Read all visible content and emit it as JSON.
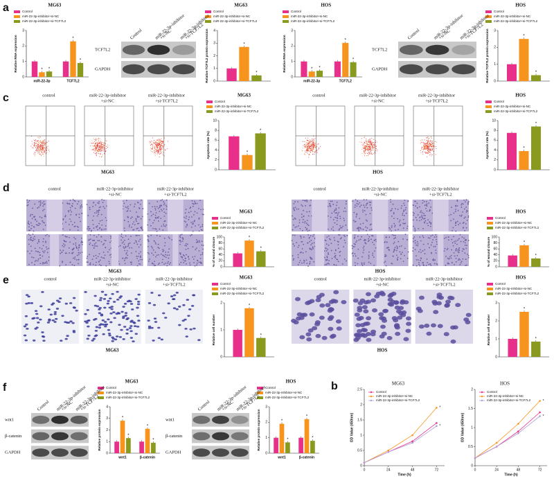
{
  "chart_data": [
    {
      "type": "bar",
      "title": "MG63",
      "ylabel": "Relative RNA expression",
      "categories": [
        "miR-22-3p",
        "TCF7L2"
      ],
      "ylim": [
        0,
        3
      ],
      "yticks": [
        0,
        1,
        2,
        3
      ],
      "series": [
        {
          "name": "Control",
          "color": "#e8308a",
          "values": [
            1.0,
            1.0
          ]
        },
        {
          "name": "miR-22-3p-inhibitor+si-NC",
          "color": "#f7941d",
          "values": [
            0.3,
            2.3
          ],
          "sig": [
            "*",
            "*"
          ]
        },
        {
          "name": "miR-22-3p-inhibitor+si-TCF7L2",
          "color": "#8a9a1e",
          "values": [
            0.35,
            0.9
          ],
          "sig": [
            "*",
            "*"
          ]
        }
      ]
    },
    {
      "type": "bar",
      "title": "MG63",
      "ylabel": "Relative TCF7L2 protein expression",
      "categories": [
        null
      ],
      "ylim": [
        0,
        4
      ],
      "yticks": [
        0,
        1,
        2,
        3,
        4
      ],
      "series": [
        {
          "name": "Control",
          "color": "#e8308a",
          "values": [
            1.0
          ]
        },
        {
          "name": "miR-22-3p-inhibitor+si-NC",
          "color": "#f7941d",
          "values": [
            2.7
          ],
          "sig": [
            "*"
          ]
        },
        {
          "name": "miR-22-3p-inhibitor+si-TCF7L2",
          "color": "#8a9a1e",
          "values": [
            0.45
          ],
          "sig": [
            "*"
          ]
        }
      ]
    },
    {
      "type": "bar",
      "title": "HOS",
      "ylabel": "Relative RNA expression",
      "categories": [
        "miR-22-3p",
        "TCF7L2"
      ],
      "ylim": [
        0,
        3
      ],
      "yticks": [
        0,
        1,
        2,
        3
      ],
      "series": [
        {
          "name": "Control",
          "color": "#e8308a",
          "values": [
            1.0,
            1.0
          ]
        },
        {
          "name": "miR-22-3p-inhibitor+si-NC",
          "color": "#f7941d",
          "values": [
            0.35,
            2.2
          ],
          "sig": [
            "*",
            "*"
          ]
        },
        {
          "name": "miR-22-3p-inhibitor+si-TCF7L2",
          "color": "#8a9a1e",
          "values": [
            0.4,
            0.95
          ],
          "sig": [
            "*",
            "*"
          ]
        }
      ]
    },
    {
      "type": "bar",
      "title": "HOS",
      "ylabel": "Relative TCF7L2 protein expression",
      "categories": [
        null
      ],
      "ylim": [
        0,
        3
      ],
      "yticks": [
        0,
        1,
        2,
        3
      ],
      "series": [
        {
          "name": "Control",
          "color": "#e8308a",
          "values": [
            1.0
          ]
        },
        {
          "name": "miR-22-3p-inhibitor+si-NC",
          "color": "#f7941d",
          "values": [
            2.5
          ],
          "sig": [
            "*"
          ]
        },
        {
          "name": "miR-22-3p-inhibitor+si-TCF7L2",
          "color": "#8a9a1e",
          "values": [
            0.35
          ],
          "sig": [
            "*"
          ]
        }
      ]
    },
    {
      "type": "bar",
      "title": "MG63",
      "ylabel": "Apoptosis rate (%)",
      "categories": [
        null
      ],
      "ylim": [
        0,
        10
      ],
      "yticks": [
        0,
        2,
        4,
        6,
        8,
        10
      ],
      "series": [
        {
          "name": "Control",
          "color": "#e8308a",
          "values": [
            6.8
          ]
        },
        {
          "name": "miR-22-3p-inhibitor+si-NC",
          "color": "#f7941d",
          "values": [
            3.0
          ],
          "sig": [
            "*"
          ]
        },
        {
          "name": "miR-22-3p-inhibitor+si-TCF7L2",
          "color": "#8a9a1e",
          "values": [
            7.4
          ],
          "sig": [
            "*"
          ]
        }
      ]
    },
    {
      "type": "bar",
      "title": "HOS",
      "ylabel": "Apoptosis rate (%)",
      "categories": [
        null
      ],
      "ylim": [
        0,
        10
      ],
      "yticks": [
        0,
        2,
        4,
        6,
        8,
        10
      ],
      "series": [
        {
          "name": "Control",
          "color": "#e8308a",
          "values": [
            7.5
          ]
        },
        {
          "name": "miR-22-3p-inhibitor+si-NC",
          "color": "#f7941d",
          "values": [
            3.8
          ],
          "sig": [
            "*"
          ]
        },
        {
          "name": "miR-22-3p-inhibitor+si-TCF7L2",
          "color": "#8a9a1e",
          "values": [
            8.8
          ],
          "sig": [
            "*"
          ]
        }
      ]
    },
    {
      "type": "bar",
      "title": "MG63",
      "ylabel": "% of wound closure",
      "categories": [
        null
      ],
      "ylim": [
        0,
        100
      ],
      "yticks": [
        0,
        20,
        40,
        60,
        80,
        100
      ],
      "series": [
        {
          "name": "Control",
          "color": "#e8308a",
          "values": [
            45
          ]
        },
        {
          "name": "miR-22-3p-inhibitor+si-NC",
          "color": "#f7941d",
          "values": [
            88
          ],
          "sig": [
            "*"
          ]
        },
        {
          "name": "miR-22-3p-inhibitor+si-TCF7L2",
          "color": "#8a9a1e",
          "values": [
            52
          ],
          "sig": [
            "*"
          ]
        }
      ]
    },
    {
      "type": "bar",
      "title": "HOS",
      "ylabel": "% of wound closure",
      "categories": [
        null
      ],
      "ylim": [
        0,
        100
      ],
      "yticks": [
        0,
        20,
        40,
        60,
        80,
        100
      ],
      "series": [
        {
          "name": "Control",
          "color": "#e8308a",
          "values": [
            38
          ]
        },
        {
          "name": "miR-22-3p-inhibitor+si-NC",
          "color": "#f7941d",
          "values": [
            72
          ],
          "sig": [
            "*"
          ]
        },
        {
          "name": "miR-22-3p-inhibitor+si-TCF7L2",
          "color": "#8a9a1e",
          "values": [
            28
          ],
          "sig": [
            "*"
          ]
        }
      ]
    },
    {
      "type": "bar",
      "title": "MG63",
      "ylabel": "Relative cell number",
      "categories": [
        null
      ],
      "ylim": [
        0,
        2
      ],
      "yticks": [
        0,
        1,
        2
      ],
      "series": [
        {
          "name": "Control",
          "color": "#e8308a",
          "values": [
            1.0
          ]
        },
        {
          "name": "miR-22-3p-inhibitor+si-NC",
          "color": "#f7941d",
          "values": [
            1.8
          ],
          "sig": [
            "*"
          ]
        },
        {
          "name": "miR-22-3p-inhibitor+si-TCF7L2",
          "color": "#8a9a1e",
          "values": [
            0.7
          ],
          "sig": [
            "*"
          ]
        }
      ]
    },
    {
      "type": "bar",
      "title": "HOS",
      "ylabel": "Relative cell number",
      "categories": [
        null
      ],
      "ylim": [
        0,
        3
      ],
      "yticks": [
        0,
        1,
        2,
        3
      ],
      "series": [
        {
          "name": "Control",
          "color": "#e8308a",
          "values": [
            1.0
          ]
        },
        {
          "name": "miR-22-3p-inhibitor+si-NC",
          "color": "#f7941d",
          "values": [
            2.5
          ],
          "sig": [
            "*"
          ]
        },
        {
          "name": "miR-22-3p-inhibitor+si-TCF7L2",
          "color": "#8a9a1e",
          "values": [
            0.85
          ],
          "sig": [
            "*"
          ]
        }
      ]
    },
    {
      "type": "bar",
      "title": "MG63",
      "ylabel": "Relative protein expression",
      "categories": [
        "wnt1",
        "β-catenin"
      ],
      "ylim": [
        0,
        4
      ],
      "yticks": [
        0,
        1,
        2,
        3,
        4
      ],
      "series": [
        {
          "name": "Control",
          "color": "#e8308a",
          "values": [
            1.0,
            1.0
          ]
        },
        {
          "name": "miR-22-3p-inhibitor+si-NC",
          "color": "#f7941d",
          "values": [
            2.8,
            2.1
          ],
          "sig": [
            "*",
            "*"
          ]
        },
        {
          "name": "miR-22-3p-inhibitor+si-TCF7L2",
          "color": "#8a9a1e",
          "values": [
            1.3,
            0.9
          ],
          "sig": [
            "*",
            "*"
          ]
        }
      ]
    },
    {
      "type": "bar",
      "title": "HOS",
      "ylabel": "Relative protein expression",
      "categories": [
        "wnt1",
        "β-catenin"
      ],
      "ylim": [
        0,
        3
      ],
      "yticks": [
        0,
        1,
        2,
        3
      ],
      "series": [
        {
          "name": "Control",
          "color": "#e8308a",
          "values": [
            1.0,
            1.0
          ]
        },
        {
          "name": "miR-22-3p-inhibitor+si-NC",
          "color": "#f7941d",
          "values": [
            1.9,
            2.2
          ],
          "sig": [
            "*",
            "*"
          ]
        },
        {
          "name": "miR-22-3p-inhibitor+si-TCF7L2",
          "color": "#8a9a1e",
          "values": [
            0.7,
            0.8
          ],
          "sig": [
            "*",
            "*"
          ]
        }
      ]
    },
    {
      "type": "line",
      "title": "MG63",
      "xlabel": "Time (h)",
      "ylabel": "OD Value (450nm)",
      "x": [
        0,
        24,
        48,
        72
      ],
      "xlim": [
        0,
        80
      ],
      "xticks": [
        0,
        24,
        48,
        72
      ],
      "ylim": [
        0,
        2.5
      ],
      "yticks": [
        0,
        0.5,
        1,
        1.5,
        2,
        2.5
      ],
      "series": [
        {
          "name": "Control",
          "color": "#e8308a",
          "values": [
            0.1,
            0.45,
            0.8,
            1.4
          ]
        },
        {
          "name": "miR-22-3p-inhibitor+si-NC",
          "color": "#f7941d",
          "values": [
            0.1,
            0.5,
            1.0,
            1.9
          ],
          "sig": [
            "*"
          ]
        },
        {
          "name": "miR-22-3p-inhibitor+si-TCF7L2",
          "color": "#b19cd9",
          "values": [
            0.1,
            0.45,
            0.75,
            1.3
          ],
          "sig": [
            "*"
          ]
        }
      ]
    },
    {
      "type": "line",
      "title": "HOS",
      "xlabel": "Time (h)",
      "ylabel": "OD Value (450nm)",
      "x": [
        0,
        24,
        48,
        72
      ],
      "xlim": [
        0,
        80
      ],
      "xticks": [
        0,
        24,
        48,
        72
      ],
      "ylim": [
        0,
        2
      ],
      "yticks": [
        0,
        0.5,
        1,
        1.5,
        2
      ],
      "series": [
        {
          "name": "Control",
          "color": "#e8308a",
          "values": [
            0.2,
            0.5,
            0.9,
            1.4
          ]
        },
        {
          "name": "miR-22-3p-inhibitor+si-NC",
          "color": "#f7941d",
          "values": [
            0.2,
            0.6,
            1.1,
            1.7
          ],
          "sig": [
            "*"
          ]
        },
        {
          "name": "miR-22-3p-inhibitor+si-TCF7L2",
          "color": "#b19cd9",
          "values": [
            0.2,
            0.5,
            0.85,
            1.3
          ],
          "sig": [
            "*"
          ]
        }
      ]
    }
  ],
  "figure": {
    "panel_labels": [
      "a",
      "c",
      "d",
      "e",
      "f",
      "b"
    ],
    "blots": [
      {
        "lanes": [
          [
            "Control"
          ],
          [
            "miR-22-3p-inhibitor",
            "+si-NC"
          ],
          [
            "miR-22-3p-inhibitor",
            "+si-TCF7L2"
          ]
        ],
        "rows": [
          "TCF7L2",
          "GAPDH"
        ]
      },
      {
        "lanes": [
          [
            "Control"
          ],
          [
            "miR-22-3p-inhibitor",
            "+si-NC"
          ],
          [
            "miR-22-3p-inhibitor",
            "+si-TCF7L2"
          ]
        ],
        "rows": [
          "TCF7L2",
          "GAPDH"
        ]
      },
      {
        "lanes": [
          [
            "Control"
          ],
          [
            "miR-22-3p-inhibitor",
            "+si-NC"
          ],
          [
            "miR-22-3p-inhibitor",
            "+si-TCF7L2"
          ]
        ],
        "rows": [
          "wnt1",
          "β-catenin",
          "GAPDH"
        ]
      },
      {
        "lanes": [
          [
            "Control"
          ],
          [
            "miR-22-3p-inhibitor",
            "+si-NC"
          ],
          [
            "miR-22-3p-inhibitor",
            "+si-TCF7L2"
          ]
        ],
        "rows": [
          "wnt1",
          "β-catenin",
          "GAPDH"
        ]
      }
    ],
    "image_groups": [
      {
        "kind": "flow",
        "columns": [
          [
            "control"
          ],
          [
            "miR-22-3p-inhibitor",
            "+si-NC"
          ],
          [
            "miR-22-3p-inhibitor",
            "+si-TCF7L2"
          ]
        ],
        "caption": "MG63"
      },
      {
        "kind": "flow",
        "columns": [
          [
            "control"
          ],
          [
            "miR-22-3p-inhibitor",
            "+si-NC"
          ],
          [
            "miR-22-3p-inhibitor",
            "+si-TCF7L2"
          ]
        ],
        "caption": "HOS"
      },
      {
        "kind": "wound",
        "columns": [
          [
            "control"
          ],
          [
            "miR-22-3p-inhibitor",
            "+si-NC"
          ],
          [
            "miR-22-3p-inhibitor",
            "+si-TCF7L2"
          ]
        ],
        "caption": "MG63"
      },
      {
        "kind": "wound",
        "columns": [
          [
            "control"
          ],
          [
            "miR-22-3p-inhibitor",
            "+si-NC"
          ],
          [
            "miR-22-3p-inhibitor",
            "+si-TCF7L2"
          ]
        ],
        "caption": "HOS"
      },
      {
        "kind": "transwell",
        "columns": [
          [
            "control"
          ],
          [
            "miR-22-3p-inhibitor",
            "+si-NC"
          ],
          [
            "miR-22-3p-inhibitor",
            "+si-TCF7L2"
          ]
        ],
        "caption": "MG63"
      },
      {
        "kind": "transwell",
        "columns": [
          [
            "control"
          ],
          [
            "miR-22-3p-inhibitor",
            "+si-NC"
          ],
          [
            "miR-22-3p-inhibitor",
            "+si-TCF7L2"
          ]
        ],
        "caption": "HOS"
      }
    ]
  }
}
